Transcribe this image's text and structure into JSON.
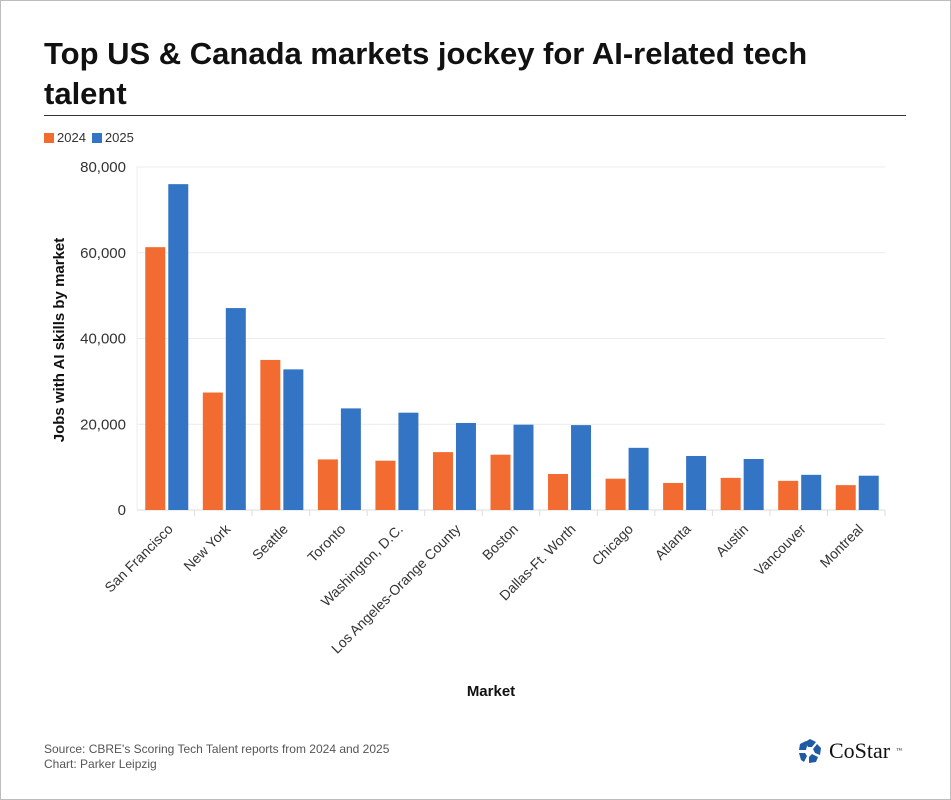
{
  "title": "Top US & Canada markets jockey for AI-related tech talent",
  "source": "Source: CBRE's Scoring Tech Talent reports from 2024 and 2025",
  "credit": "Chart: Parker Leipzig",
  "logo": "CoStar",
  "chart_data": {
    "type": "bar",
    "title": "Top US & Canada markets jockey for AI-related tech talent",
    "xlabel": "Market",
    "ylabel": "Jobs with AI skills by market",
    "ylim": [
      0,
      80000
    ],
    "yticks": [
      0,
      20000,
      40000,
      60000,
      80000
    ],
    "ytick_labels": [
      "0",
      "20,000",
      "40,000",
      "60,000",
      "80,000"
    ],
    "grid": true,
    "legend": "top-left",
    "categories": [
      "San Francisco",
      "New York",
      "Seattle",
      "Toronto",
      "Washington, D.C.",
      "Los Angeles-Orange County",
      "Boston",
      "Dallas-Ft. Worth",
      "Chicago",
      "Atlanta",
      "Austin",
      "Vancouver",
      "Montreal"
    ],
    "series": [
      {
        "name": "2024",
        "color": "#f26b30",
        "values": [
          61300,
          27400,
          35000,
          11800,
          11500,
          13500,
          12900,
          8400,
          7300,
          6300,
          7500,
          6800,
          5800
        ]
      },
      {
        "name": "2025",
        "color": "#3474c4",
        "values": [
          76000,
          47100,
          32800,
          23700,
          22700,
          20300,
          19900,
          19800,
          14500,
          12600,
          11900,
          8200,
          8000
        ]
      }
    ]
  }
}
